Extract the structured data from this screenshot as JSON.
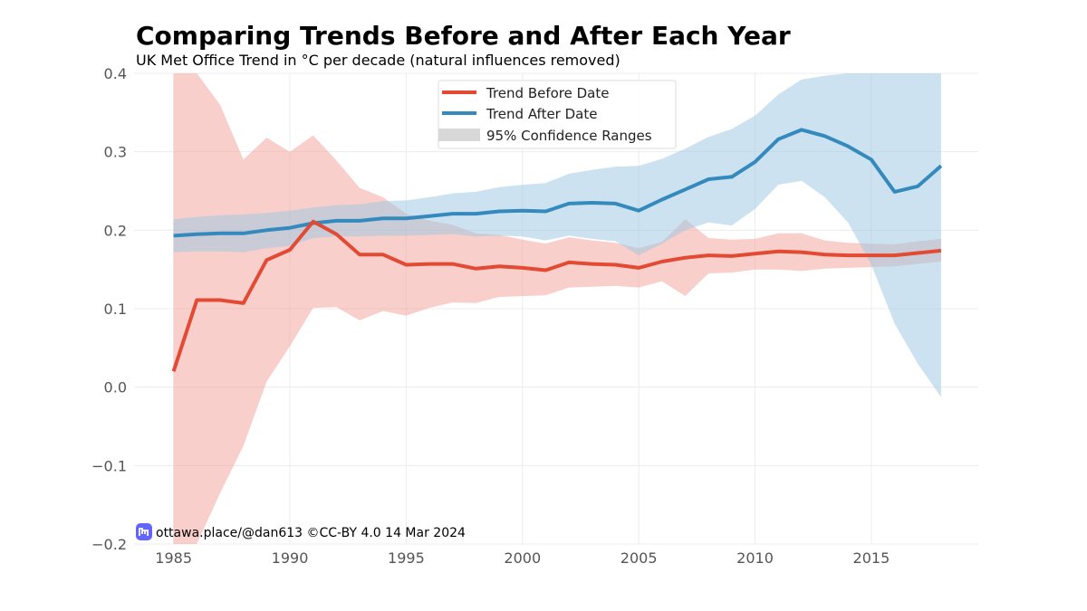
{
  "chart_data": {
    "type": "line",
    "title": "Comparing Trends Before and After Each Year",
    "subtitle": "UK Met Office Trend in °C per decade (natural influences removed)",
    "xlabel": "",
    "ylabel": "",
    "xlim": [
      1983.3,
      2019.6
    ],
    "ylim": [
      -0.2,
      0.4
    ],
    "xticks": [
      1985,
      1990,
      1995,
      2000,
      2005,
      2010,
      2015
    ],
    "xtick_labels": [
      "1985",
      "1990",
      "1995",
      "2000",
      "2005",
      "2010",
      "2015"
    ],
    "yticks": [
      -0.2,
      -0.1,
      0.0,
      0.1,
      0.2,
      0.3,
      0.4
    ],
    "ytick_labels": [
      "−0.2",
      "−0.1",
      "0.0",
      "0.1",
      "0.2",
      "0.3",
      "0.4"
    ],
    "grid": true,
    "legend_position": "top-center",
    "x": [
      1985,
      1986,
      1987,
      1988,
      1989,
      1990,
      1991,
      1992,
      1993,
      1994,
      1995,
      1996,
      1997,
      1998,
      1999,
      2000,
      2001,
      2002,
      2003,
      2004,
      2005,
      2006,
      2007,
      2008,
      2009,
      2010,
      2011,
      2012,
      2013,
      2014,
      2015,
      2016,
      2017,
      2018
    ],
    "series": [
      {
        "name": "Trend Before Date",
        "color": "#e24a33",
        "values": [
          0.02,
          0.111,
          0.111,
          0.107,
          0.162,
          0.175,
          0.211,
          0.195,
          0.169,
          0.169,
          0.156,
          0.157,
          0.157,
          0.151,
          0.154,
          0.152,
          0.149,
          0.159,
          0.157,
          0.156,
          0.152,
          0.16,
          0.165,
          0.168,
          0.167,
          0.17,
          0.173,
          0.172,
          0.169,
          0.168,
          0.168,
          0.168,
          0.171,
          0.174
        ],
        "lower": [
          -0.2,
          -0.2,
          -0.135,
          -0.075,
          0.007,
          0.052,
          0.101,
          0.102,
          0.085,
          0.097,
          0.091,
          0.101,
          0.108,
          0.107,
          0.115,
          0.116,
          0.117,
          0.127,
          0.128,
          0.129,
          0.127,
          0.135,
          0.116,
          0.145,
          0.146,
          0.15,
          0.15,
          0.148,
          0.151,
          0.152,
          0.153,
          0.154,
          0.157,
          0.16
        ],
        "upper": [
          0.4,
          0.4,
          0.36,
          0.29,
          0.318,
          0.3,
          0.321,
          0.289,
          0.254,
          0.242,
          0.221,
          0.212,
          0.207,
          0.196,
          0.194,
          0.188,
          0.183,
          0.191,
          0.187,
          0.184,
          0.177,
          0.185,
          0.214,
          0.19,
          0.188,
          0.189,
          0.196,
          0.196,
          0.187,
          0.184,
          0.183,
          0.182,
          0.186,
          0.189
        ]
      },
      {
        "name": "Trend After Date",
        "color": "#348abd",
        "values": [
          0.193,
          0.195,
          0.196,
          0.196,
          0.2,
          0.203,
          0.209,
          0.212,
          0.212,
          0.215,
          0.215,
          0.218,
          0.221,
          0.221,
          0.224,
          0.225,
          0.224,
          0.234,
          0.235,
          0.234,
          0.225,
          0.239,
          0.252,
          0.265,
          0.268,
          0.287,
          0.316,
          0.328,
          0.32,
          0.307,
          0.29,
          0.249,
          0.256,
          0.282
        ],
        "lower": [
          0.172,
          0.173,
          0.173,
          0.172,
          0.177,
          0.18,
          0.19,
          0.192,
          0.192,
          0.193,
          0.193,
          0.194,
          0.195,
          0.192,
          0.193,
          0.192,
          0.187,
          0.193,
          0.189,
          0.186,
          0.168,
          0.183,
          0.2,
          0.21,
          0.206,
          0.227,
          0.258,
          0.263,
          0.242,
          0.21,
          0.156,
          0.081,
          0.03,
          -0.013
        ],
        "upper": [
          0.214,
          0.217,
          0.219,
          0.22,
          0.222,
          0.225,
          0.229,
          0.232,
          0.233,
          0.237,
          0.238,
          0.242,
          0.247,
          0.249,
          0.255,
          0.258,
          0.26,
          0.272,
          0.277,
          0.281,
          0.282,
          0.291,
          0.304,
          0.319,
          0.329,
          0.346,
          0.373,
          0.392,
          0.397,
          0.4,
          0.4,
          0.4,
          0.4,
          0.4
        ]
      }
    ],
    "confidence_label": "95% Confidence Ranges",
    "band_colors": {
      "before": "#f2a39b",
      "after": "#9ec7e3"
    },
    "legend_patch_color": "#d8d8d8",
    "credit": "ottawa.place/@dan613 ©CC-BY 4.0  14 Mar 2024",
    "credit_icon": "mastodon-icon",
    "credit_icon_color": "#6364ff"
  }
}
